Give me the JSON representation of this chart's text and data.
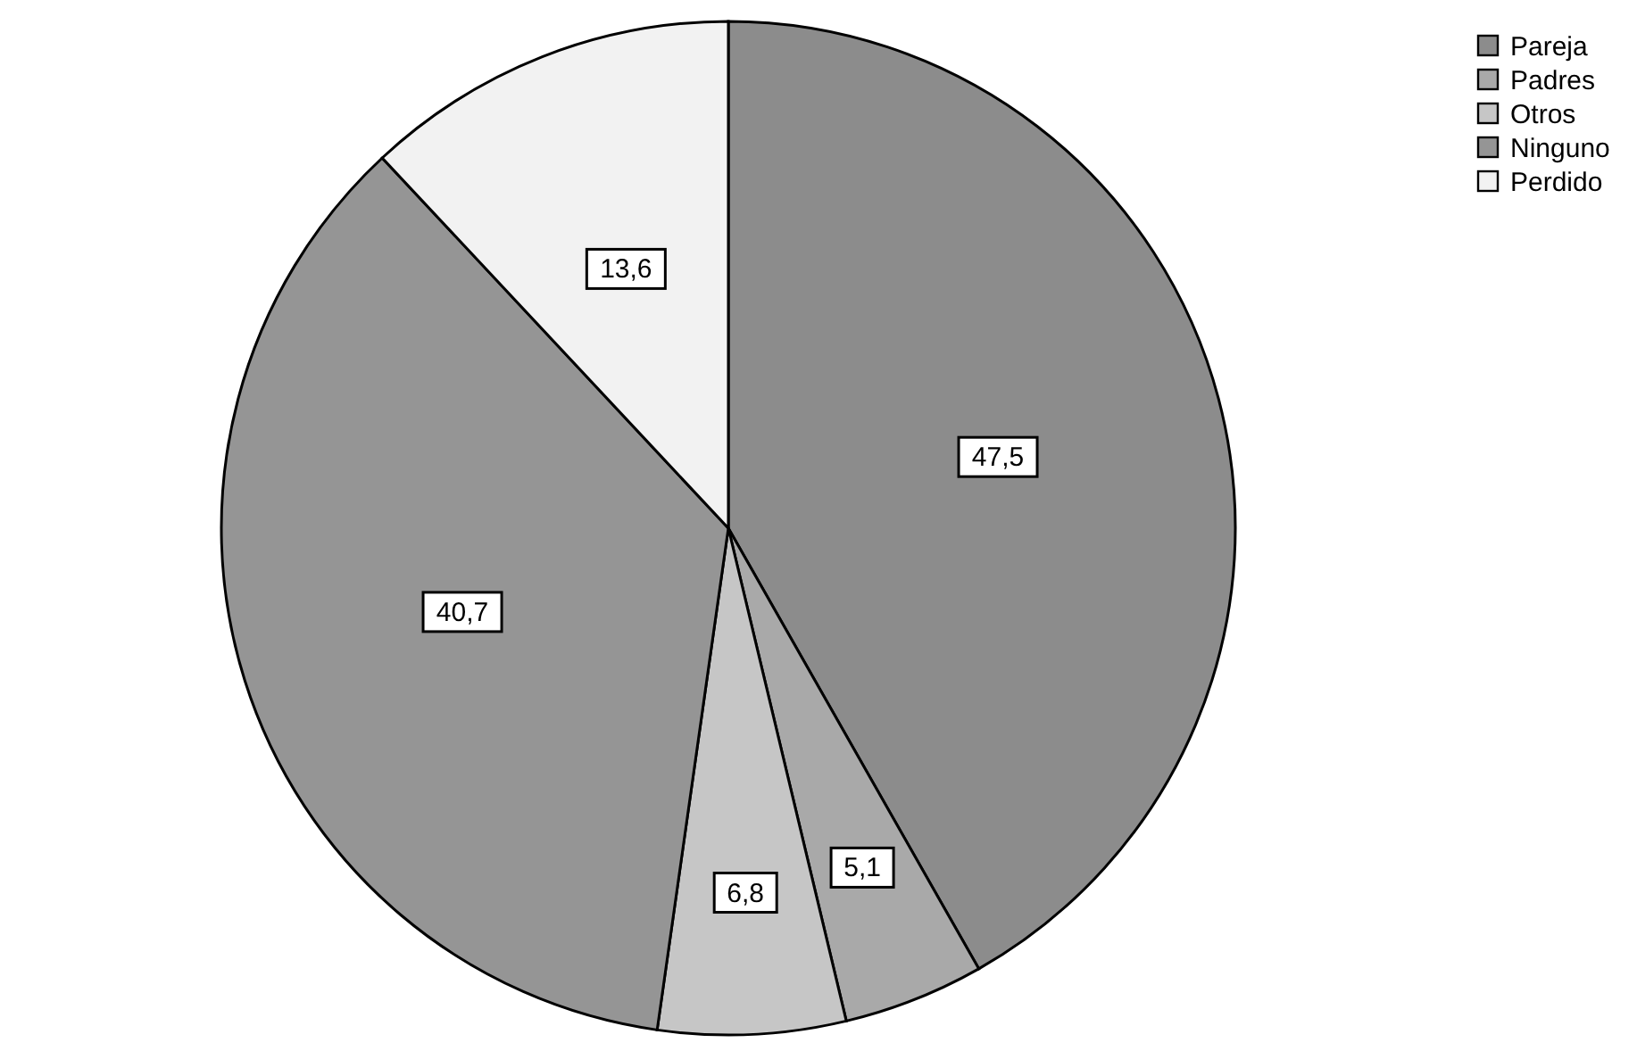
{
  "chart_data": {
    "type": "pie",
    "categories": [
      "Pareja",
      "Padres",
      "Otros",
      "Ninguno",
      "Perdido"
    ],
    "values": [
      47.5,
      5.1,
      6.8,
      40.7,
      13.6
    ],
    "value_labels": [
      "47,5",
      "5,1",
      "6,8",
      "40,7",
      "13,6"
    ],
    "colors": [
      "#8c8c8c",
      "#a9a9a9",
      "#c6c6c6",
      "#959595",
      "#f2f2f2"
    ],
    "legend": "top right"
  }
}
